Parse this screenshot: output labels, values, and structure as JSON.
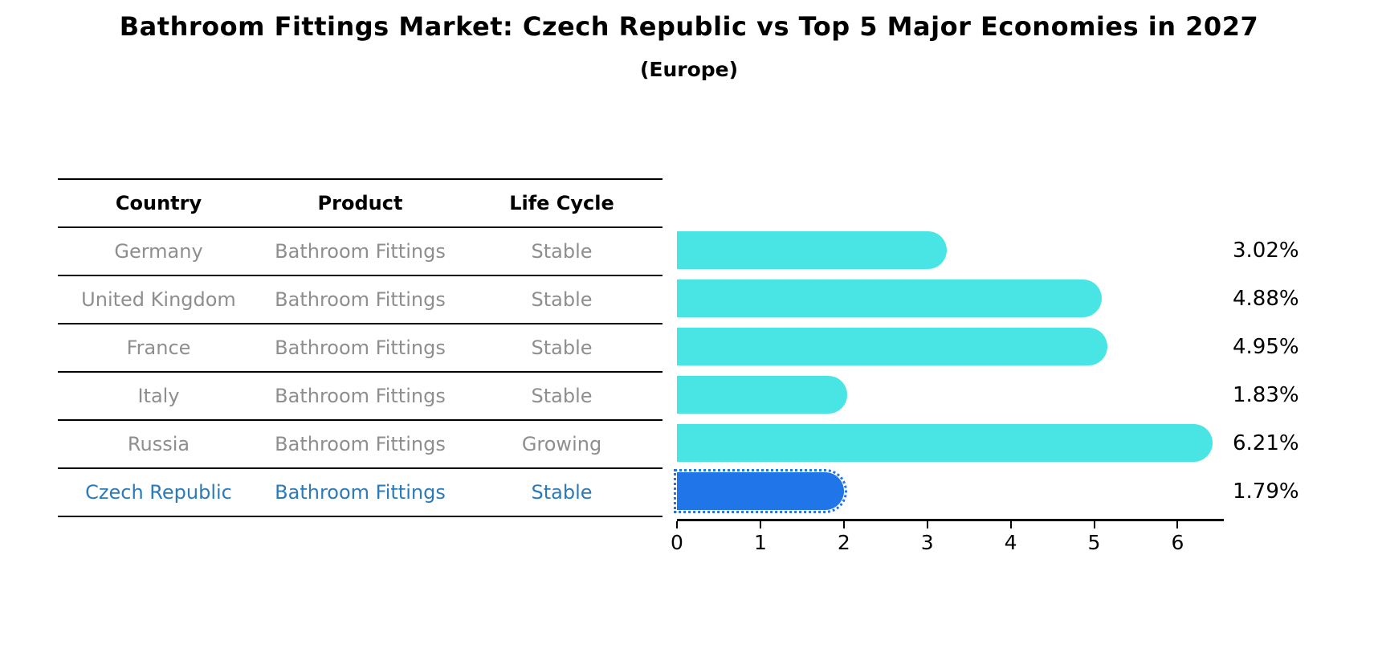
{
  "title": "Bathroom Fittings Market: Czech Republic vs Top 5 Major Economies in 2027",
  "subtitle": "(Europe)",
  "table": {
    "headers": [
      "Country",
      "Product",
      "Life Cycle"
    ],
    "rows": [
      {
        "country": "Germany",
        "product": "Bathroom Fittings",
        "life_cycle": "Stable",
        "highlighted": false
      },
      {
        "country": "United Kingdom",
        "product": "Bathroom Fittings",
        "life_cycle": "Stable",
        "highlighted": false
      },
      {
        "country": "France",
        "product": "Bathroom Fittings",
        "life_cycle": "Stable",
        "highlighted": false
      },
      {
        "country": "Italy",
        "product": "Bathroom Fittings",
        "life_cycle": "Stable",
        "highlighted": false
      },
      {
        "country": "Russia",
        "product": "Bathroom Fittings",
        "life_cycle": "Growing",
        "highlighted": false
      },
      {
        "country": "Czech Republic",
        "product": "Bathroom Fittings",
        "life_cycle": "Stable",
        "highlighted": true
      }
    ]
  },
  "chart_data": {
    "type": "bar",
    "orientation": "horizontal",
    "title": "Bathroom Fittings Market: Czech Republic vs Top 5 Major Economies in 2027",
    "subtitle": "(Europe)",
    "categories": [
      "Germany",
      "United Kingdom",
      "France",
      "Italy",
      "Russia",
      "Czech Republic"
    ],
    "values": [
      3.02,
      4.88,
      4.95,
      1.83,
      6.21,
      1.79
    ],
    "value_labels": [
      "3.02%",
      "4.88%",
      "4.95%",
      "1.83%",
      "6.21%",
      "1.79%"
    ],
    "unit": "%",
    "xlim": [
      0,
      6.55
    ],
    "x_ticks": [
      0,
      1,
      2,
      3,
      4,
      5,
      6
    ],
    "grid": false,
    "legend": false,
    "bar_color": "#48e5e4",
    "highlight_color": "#2076e8",
    "highlight_index": 5,
    "highlight_style": "dotted-edge"
  },
  "colors": {
    "row_text": "#8e8e8e",
    "header_text": "#000000",
    "highlight_text": "#2b7aba",
    "axis": "#000000",
    "background": "#ffffff"
  }
}
